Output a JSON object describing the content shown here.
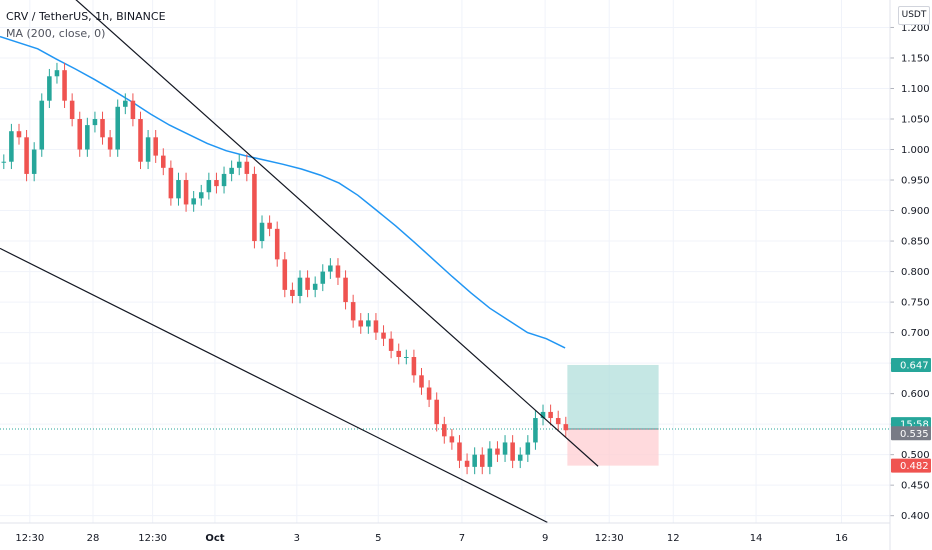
{
  "legend": {
    "symbol": "CRV / TetherUS, 1h, BINANCE",
    "indicator": "MA (200, close, 0)"
  },
  "currency_button": "USDT",
  "colors": {
    "up": "#26a69a",
    "down": "#ef5350",
    "ma": "#2196f3",
    "grid": "#f0f3fa",
    "trendline": "#131722",
    "profit_zone": "#b2dfdb",
    "loss_zone": "#ffcdd2"
  },
  "chart_data": {
    "type": "candlestick",
    "y_axis": {
      "ticks": [
        "1.200",
        "1.150",
        "1.100",
        "1.050",
        "1.000",
        "0.950",
        "0.900",
        "0.850",
        "0.800",
        "0.750",
        "0.700",
        "0.650",
        "0.600",
        "0.550",
        "0.500",
        "0.450",
        "0.400"
      ],
      "ylim": [
        0.388,
        1.245
      ]
    },
    "x_axis": {
      "labels": [
        {
          "text": "12:30",
          "bold": false
        },
        {
          "text": "28",
          "bold": false
        },
        {
          "text": "12:30",
          "bold": false
        },
        {
          "text": "Oct",
          "bold": true
        },
        {
          "text": "3",
          "bold": false
        },
        {
          "text": "5",
          "bold": false
        },
        {
          "text": "7",
          "bold": false
        },
        {
          "text": "9",
          "bold": false
        },
        {
          "text": "12:30",
          "bold": false
        },
        {
          "text": "12",
          "bold": false
        },
        {
          "text": "14",
          "bold": false
        },
        {
          "text": "16",
          "bold": false
        }
      ]
    },
    "price_tags": [
      {
        "label": "0.647",
        "value": 0.647,
        "color": "#26a69a"
      },
      {
        "label": "15:58",
        "value": 0.55,
        "color": "#26a69a"
      },
      {
        "label": "0.535",
        "value": 0.535,
        "color": "#787b86"
      },
      {
        "label": "0.482",
        "value": 0.482,
        "color": "#ef5350"
      }
    ],
    "current_price": 0.542,
    "ma_200": [
      1.185,
      1.175,
      1.165,
      1.148,
      1.132,
      1.115,
      1.097,
      1.078,
      1.058,
      1.04,
      1.025,
      1.01,
      0.998,
      0.99,
      0.983,
      0.976,
      0.968,
      0.958,
      0.945,
      0.925,
      0.9,
      0.875,
      0.848,
      0.82,
      0.792,
      0.765,
      0.74,
      0.72,
      0.7,
      0.69,
      0.675
    ],
    "candles_close": [
      0.98,
      1.03,
      1.02,
      0.96,
      1.0,
      1.08,
      1.12,
      1.13,
      1.08,
      1.05,
      1.0,
      1.04,
      1.05,
      1.02,
      1.0,
      1.07,
      1.08,
      1.05,
      0.98,
      1.02,
      0.99,
      0.97,
      0.92,
      0.95,
      0.91,
      0.92,
      0.93,
      0.95,
      0.94,
      0.96,
      0.97,
      0.98,
      0.96,
      0.85,
      0.88,
      0.87,
      0.82,
      0.77,
      0.76,
      0.79,
      0.77,
      0.78,
      0.8,
      0.81,
      0.79,
      0.75,
      0.72,
      0.71,
      0.72,
      0.7,
      0.69,
      0.67,
      0.66,
      0.66,
      0.63,
      0.61,
      0.59,
      0.55,
      0.53,
      0.52,
      0.49,
      0.48,
      0.5,
      0.48,
      0.51,
      0.5,
      0.52,
      0.49,
      0.5,
      0.52,
      0.56,
      0.57,
      0.56,
      0.55,
      0.54
    ],
    "trendlines": [
      {
        "name": "upper",
        "from": {
          "x": 0.055,
          "y": 1.285
        },
        "to": {
          "x": 0.672,
          "y": 0.481
        }
      },
      {
        "name": "lower",
        "from": {
          "x": 0.0,
          "y": 0.838
        },
        "to": {
          "x": 0.615,
          "y": 0.389
        }
      }
    ],
    "position": {
      "entry": 0.542,
      "target": 0.647,
      "stop": 0.482
    }
  }
}
